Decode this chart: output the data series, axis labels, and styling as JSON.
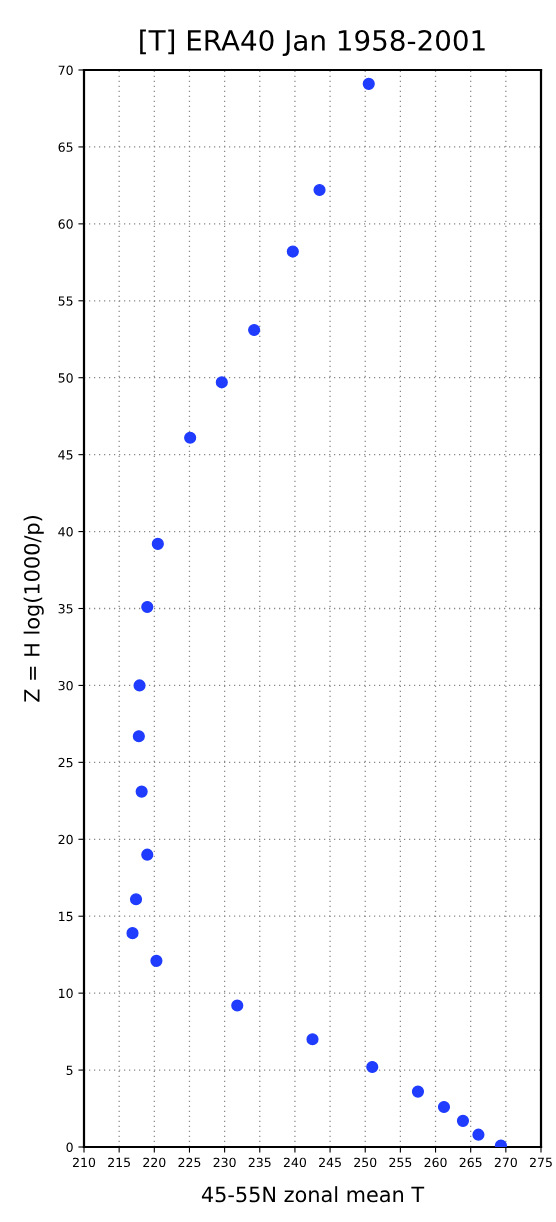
{
  "chart_data": {
    "type": "scatter",
    "title": "[T] ERA40 Jan 1958-2001",
    "xlabel": "45-55N zonal mean T",
    "ylabel": "Z = H log(1000/p)",
    "x": [
      250.5,
      243.5,
      239.7,
      234.2,
      229.6,
      225.1,
      220.5,
      219.0,
      217.9,
      217.8,
      218.2,
      219.0,
      217.4,
      216.9,
      220.3,
      231.8,
      242.5,
      251.0,
      257.5,
      261.2,
      263.9,
      266.1,
      269.3
    ],
    "series": [
      {
        "color": "#1f3cff",
        "values": [
          69.1,
          62.2,
          58.2,
          53.1,
          49.7,
          46.1,
          39.2,
          35.1,
          30.0,
          26.7,
          23.1,
          19.0,
          16.1,
          13.9,
          12.1,
          9.2,
          7.0,
          5.2,
          3.6,
          2.6,
          1.7,
          0.8,
          0.1
        ]
      }
    ],
    "xlim": [
      210,
      275
    ],
    "xticks": [
      210,
      215,
      220,
      225,
      230,
      235,
      240,
      245,
      250,
      255,
      260,
      265,
      270,
      275
    ],
    "ylim": [
      0,
      70
    ],
    "yticks": [
      0,
      5,
      10,
      15,
      20,
      25,
      30,
      35,
      40,
      45,
      50,
      55,
      60,
      65,
      70
    ],
    "grid": true,
    "marker": "circle"
  }
}
